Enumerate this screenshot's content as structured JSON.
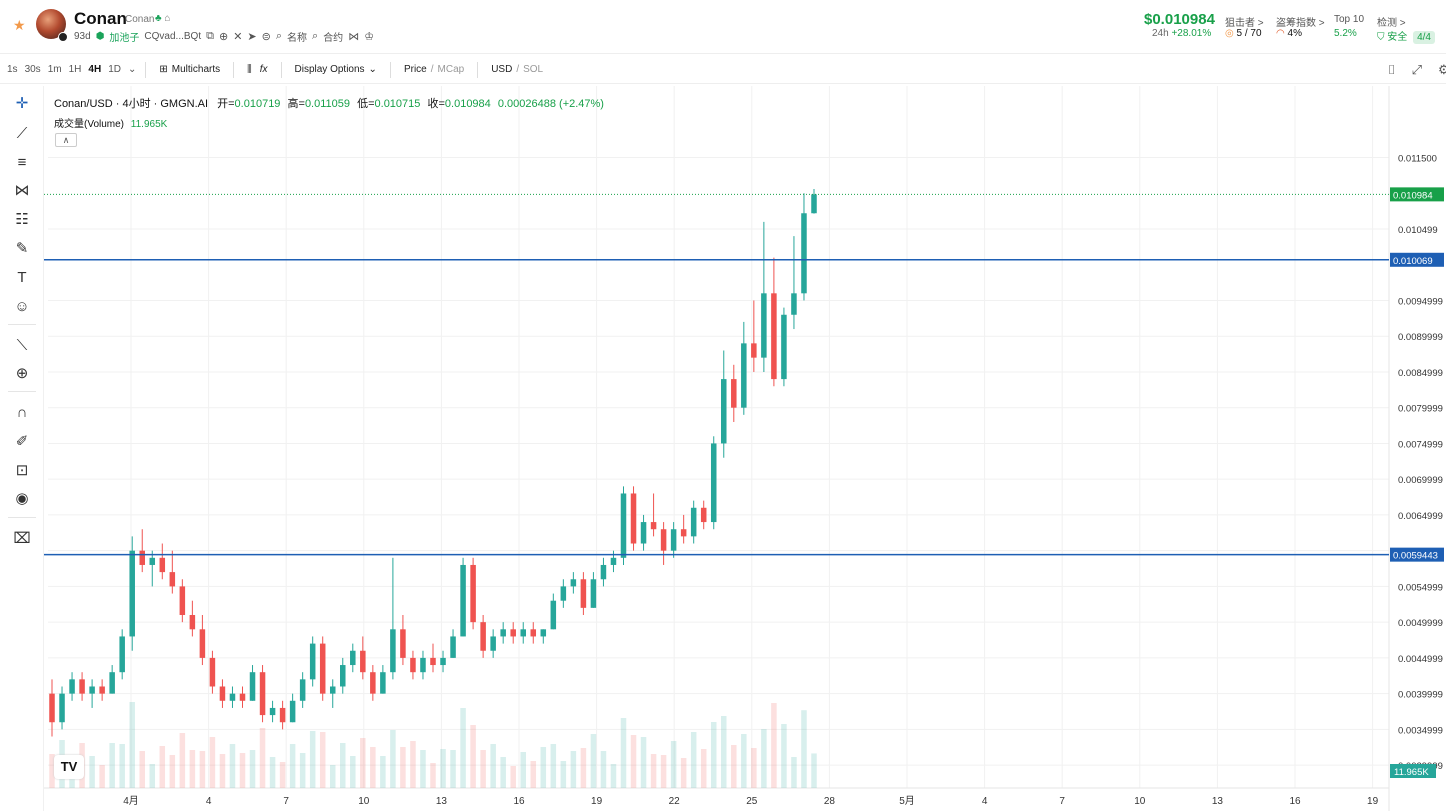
{
  "header": {
    "token_name": "Conan",
    "token_subname": "Conan",
    "age": "93d",
    "pool_label": "加池子",
    "contract": "CQvad...BQt",
    "name_search": "名称",
    "contract_search": "合约",
    "price": "$0.010984",
    "change_label": "24h",
    "change_value": "+28.01%",
    "snipers_label": "狙击者 >",
    "snipers_value": "5 / 70",
    "rug_label": "盗筹指数 >",
    "rug_value": "4%",
    "top10_label": "Top 10",
    "top10_value": "5.2%",
    "check_label": "检测 >",
    "check_value": "安全",
    "check_score": "4/4"
  },
  "toolbar": {
    "timeframes": [
      "1s",
      "30s",
      "1m",
      "1H",
      "4H",
      "1D"
    ],
    "active_timeframe": "4H",
    "multicharts": "Multicharts",
    "display_options": "Display Options",
    "price_label": "Price",
    "mcap_label": "MCap",
    "usd_label": "USD",
    "sol_label": "SOL"
  },
  "legend": {
    "pair": "Conan/USD · 4小时 · GMGN.AI",
    "open_label": "开=",
    "open": "0.010719",
    "high_label": "高=",
    "high": "0.011059",
    "low_label": "低=",
    "low": "0.010715",
    "close_label": "收=",
    "close": "0.010984",
    "change": "0.00026488 (+2.47%)",
    "volume_label": "成交量(Volume)",
    "volume": "11.965K"
  },
  "colors": {
    "up": "#26a69a",
    "down": "#ef5350",
    "price_line": "#18a049",
    "hline": "#1e5fb4"
  },
  "chart_data": {
    "type": "candlestick",
    "y_ticks": [
      "0.011500",
      "0.010499",
      "0.0094999",
      "0.0089999",
      "0.0084999",
      "0.0079999",
      "0.0074999",
      "0.0069999",
      "0.0064999",
      "0.0059999",
      "0.0054999",
      "0.0049999",
      "0.0044999",
      "0.0039999",
      "0.0034999",
      "0.0029999"
    ],
    "y_tick_values": [
      0.0115,
      0.010499,
      0.0094999,
      0.0089999,
      0.0084999,
      0.0079999,
      0.0074999,
      0.0069999,
      0.0064999,
      0.0059999,
      0.0054999,
      0.0049999,
      0.0044999,
      0.0039999,
      0.0034999,
      0.0029999
    ],
    "ylim": [
      0.00268,
      0.0125
    ],
    "x_ticks": [
      "4月",
      "4",
      "7",
      "10",
      "13",
      "16",
      "19",
      "22",
      "25",
      "28",
      "5月",
      "4",
      "7",
      "10",
      "13",
      "16",
      "19"
    ],
    "current_price": "0.010984",
    "current_price_value": 0.010984,
    "horizontal_lines": [
      {
        "label": "0.010069",
        "value": 0.010069
      },
      {
        "label": "0.0059443",
        "value": 0.0059443
      }
    ],
    "volume_label": "11.965K",
    "candles": [
      [
        0.004,
        0.0042,
        0.0034,
        0.0036
      ],
      [
        0.0036,
        0.0041,
        0.0035,
        0.004
      ],
      [
        0.004,
        0.0043,
        0.0039,
        0.0042
      ],
      [
        0.0042,
        0.0043,
        0.0039,
        0.004
      ],
      [
        0.004,
        0.0042,
        0.0038,
        0.0041
      ],
      [
        0.0041,
        0.0042,
        0.0039,
        0.004
      ],
      [
        0.004,
        0.0044,
        0.004,
        0.0043
      ],
      [
        0.0043,
        0.0049,
        0.0042,
        0.0048
      ],
      [
        0.0048,
        0.0062,
        0.0046,
        0.006
      ],
      [
        0.006,
        0.0063,
        0.0057,
        0.0058
      ],
      [
        0.0058,
        0.006,
        0.0055,
        0.0059
      ],
      [
        0.0059,
        0.0061,
        0.0056,
        0.0057
      ],
      [
        0.0057,
        0.006,
        0.0054,
        0.0055
      ],
      [
        0.0055,
        0.0056,
        0.005,
        0.0051
      ],
      [
        0.0051,
        0.0053,
        0.0048,
        0.0049
      ],
      [
        0.0049,
        0.0051,
        0.0044,
        0.0045
      ],
      [
        0.0045,
        0.0046,
        0.004,
        0.0041
      ],
      [
        0.0041,
        0.0042,
        0.0038,
        0.0039
      ],
      [
        0.0039,
        0.0041,
        0.0038,
        0.004
      ],
      [
        0.004,
        0.0041,
        0.0038,
        0.0039
      ],
      [
        0.0039,
        0.0044,
        0.0039,
        0.0043
      ],
      [
        0.0043,
        0.0044,
        0.0036,
        0.0037
      ],
      [
        0.0037,
        0.0039,
        0.0036,
        0.0038
      ],
      [
        0.0038,
        0.0039,
        0.0035,
        0.0036
      ],
      [
        0.0036,
        0.004,
        0.0036,
        0.0039
      ],
      [
        0.0039,
        0.0043,
        0.0038,
        0.0042
      ],
      [
        0.0042,
        0.0048,
        0.0041,
        0.0047
      ],
      [
        0.0047,
        0.0048,
        0.0039,
        0.004
      ],
      [
        0.004,
        0.0042,
        0.0038,
        0.0041
      ],
      [
        0.0041,
        0.0045,
        0.004,
        0.0044
      ],
      [
        0.0044,
        0.0047,
        0.0043,
        0.0046
      ],
      [
        0.0046,
        0.0048,
        0.0042,
        0.0043
      ],
      [
        0.0043,
        0.0044,
        0.0039,
        0.004
      ],
      [
        0.004,
        0.0044,
        0.004,
        0.0043
      ],
      [
        0.0043,
        0.0059,
        0.0042,
        0.0049
      ],
      [
        0.0049,
        0.0051,
        0.0044,
        0.0045
      ],
      [
        0.0045,
        0.0046,
        0.0042,
        0.0043
      ],
      [
        0.0043,
        0.0046,
        0.0042,
        0.0045
      ],
      [
        0.0045,
        0.0047,
        0.0043,
        0.0044
      ],
      [
        0.0044,
        0.0046,
        0.0043,
        0.0045
      ],
      [
        0.0045,
        0.0049,
        0.0045,
        0.0048
      ],
      [
        0.0048,
        0.0059,
        0.0048,
        0.0058
      ],
      [
        0.0058,
        0.0059,
        0.0049,
        0.005
      ],
      [
        0.005,
        0.0051,
        0.0045,
        0.0046
      ],
      [
        0.0046,
        0.0049,
        0.0045,
        0.0048
      ],
      [
        0.0048,
        0.005,
        0.0047,
        0.0049
      ],
      [
        0.0049,
        0.005,
        0.0047,
        0.0048
      ],
      [
        0.0048,
        0.005,
        0.0047,
        0.0049
      ],
      [
        0.0049,
        0.005,
        0.0047,
        0.0048
      ],
      [
        0.0048,
        0.0049,
        0.0047,
        0.0049
      ],
      [
        0.0049,
        0.0054,
        0.0049,
        0.0053
      ],
      [
        0.0053,
        0.0056,
        0.0052,
        0.0055
      ],
      [
        0.0055,
        0.0057,
        0.0054,
        0.0056
      ],
      [
        0.0056,
        0.0057,
        0.0051,
        0.0052
      ],
      [
        0.0052,
        0.0057,
        0.0052,
        0.0056
      ],
      [
        0.0056,
        0.0059,
        0.0055,
        0.0058
      ],
      [
        0.0058,
        0.006,
        0.0057,
        0.0059
      ],
      [
        0.0059,
        0.0069,
        0.0058,
        0.0068
      ],
      [
        0.0068,
        0.0069,
        0.006,
        0.0061
      ],
      [
        0.0061,
        0.0065,
        0.006,
        0.0064
      ],
      [
        0.0064,
        0.0068,
        0.0062,
        0.0063
      ],
      [
        0.0063,
        0.0064,
        0.0058,
        0.006
      ],
      [
        0.006,
        0.0064,
        0.0059,
        0.0063
      ],
      [
        0.0063,
        0.0065,
        0.0061,
        0.0062
      ],
      [
        0.0062,
        0.0067,
        0.0061,
        0.0066
      ],
      [
        0.0066,
        0.0067,
        0.0063,
        0.0064
      ],
      [
        0.0064,
        0.0076,
        0.0063,
        0.0075
      ],
      [
        0.0075,
        0.0088,
        0.0073,
        0.0084
      ],
      [
        0.0084,
        0.0086,
        0.0078,
        0.008
      ],
      [
        0.008,
        0.0092,
        0.0079,
        0.0089
      ],
      [
        0.0089,
        0.0095,
        0.0085,
        0.0087
      ],
      [
        0.0087,
        0.0106,
        0.0085,
        0.0096
      ],
      [
        0.0096,
        0.0101,
        0.0083,
        0.0084
      ],
      [
        0.0084,
        0.0094,
        0.0083,
        0.0093
      ],
      [
        0.0093,
        0.0104,
        0.0091,
        0.0096
      ],
      [
        0.0096,
        0.011,
        0.0095,
        0.01072
      ],
      [
        0.01072,
        0.011059,
        0.010715,
        0.010984
      ]
    ]
  }
}
